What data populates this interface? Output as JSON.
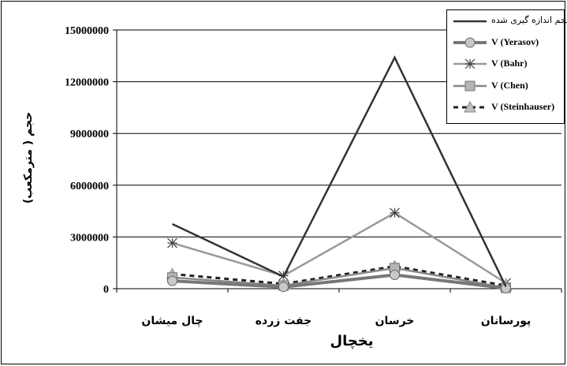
{
  "chart_data": {
    "type": "line",
    "categories": [
      "چال میشان",
      "جفت زرده",
      "خرسان",
      "پورسانان"
    ],
    "xlabel": "یخچال",
    "ylabel": "حجم ( مترمکعب)",
    "ylim": [
      0,
      15000000
    ],
    "yticks": [
      "0",
      "3000000",
      "6000000",
      "9000000",
      "12000000",
      "15000000"
    ],
    "grid": true,
    "legend_position": "top-right",
    "series": [
      {
        "name": "حجم اندازه گیری شده",
        "values": [
          3750000,
          700000,
          13400000,
          120000
        ],
        "color": "#333333",
        "marker": "none",
        "dash": "solid"
      },
      {
        "name": "V (Yerasov)",
        "values": [
          450000,
          100000,
          800000,
          30000
        ],
        "color": "#777777",
        "marker": "circle",
        "dash": "solid"
      },
      {
        "name": "V (Bahr)",
        "values": [
          2650000,
          750000,
          4400000,
          330000
        ],
        "color": "#999999",
        "marker": "star",
        "dash": "solid"
      },
      {
        "name": "V (Chen)",
        "values": [
          650000,
          180000,
          1200000,
          50000
        ],
        "color": "#888888",
        "marker": "square",
        "dash": "solid"
      },
      {
        "name": "V (Steinhauser)",
        "values": [
          850000,
          280000,
          1300000,
          180000
        ],
        "color": "#222222",
        "marker": "triangle",
        "dash": "dashed"
      }
    ]
  }
}
